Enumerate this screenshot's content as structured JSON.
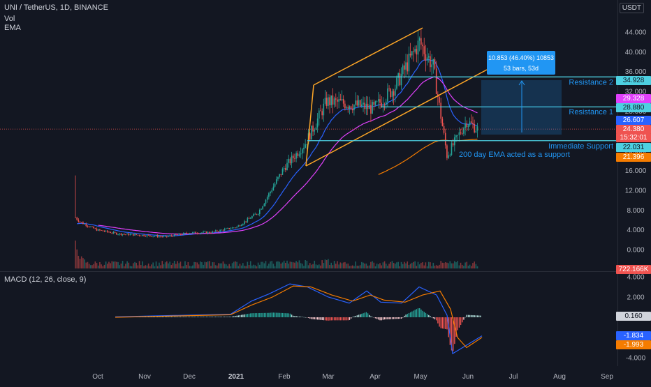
{
  "legend": {
    "symbol": "UNI / TetherUS, 1D, BINANCE",
    "vol": "Vol",
    "ema": "EMA",
    "macd": "MACD (12, 26, close, 9)"
  },
  "currency": "USDT",
  "colors": {
    "background": "#131722",
    "up": "#26a69a",
    "down": "#ef5350",
    "ema_fast": "#2962ff",
    "ema_mid": "#e040fb",
    "ema_200": "#f57c00",
    "channel": "#ffa726",
    "hline": "#4dd0e1",
    "measure": "#2196f3"
  },
  "price_axis": [
    "44.000",
    "40.000",
    "36.000",
    "32.000",
    "28.000",
    "24.000",
    "20.000",
    "16.000",
    "12.000",
    "8.000",
    "4.000",
    "0.000"
  ],
  "macd_axis": [
    "4.000",
    "2.000",
    "-2.000",
    "-4.000"
  ],
  "time_axis": [
    "Oct",
    "Nov",
    "Dec",
    "2021",
    "Feb",
    "Mar",
    "Apr",
    "May",
    "Jun",
    "Jul",
    "Aug",
    "Sep"
  ],
  "price_tags": {
    "resistance2": "34.928",
    "ema_mid": "29.328",
    "resistance1": "28.880",
    "ema_fast": "26.607",
    "last": "24.380",
    "countdown": "15:32:01",
    "support": "22.031",
    "ema_200": "21.396",
    "volume": "722.166K"
  },
  "macd_tags": {
    "hist": "0.160",
    "macd": "-1.834",
    "signal": "-1.993"
  },
  "annotations": {
    "resistance2": "Resistance 2",
    "resistance1": "Resistance 1",
    "support": "Immediate Support",
    "ema_note": "200 day EMA acted as a support",
    "measure_line1": "10.853 (46.40%) 10853",
    "measure_line2": "53 bars, 53d"
  },
  "chart_data": {
    "type": "candlestick",
    "symbol": "UNI/USDT",
    "interval": "1D",
    "exchange": "BINANCE",
    "ylim": [
      -1,
      46
    ],
    "x_categories": [
      "Oct",
      "Nov",
      "Dec",
      "2021",
      "Feb",
      "Mar",
      "Apr",
      "May",
      "Jun",
      "Jul",
      "Aug",
      "Sep"
    ],
    "close_path": [
      [
        "Sep 17",
        6.5
      ],
      [
        "Sep 20",
        5.6
      ],
      [
        "Oct 1",
        4.0
      ],
      [
        "Oct 15",
        3.2
      ],
      [
        "Nov 1",
        2.9
      ],
      [
        "Nov 15",
        2.6
      ],
      [
        "Dec 1",
        3.4
      ],
      [
        "Dec 15",
        3.5
      ],
      [
        "Jan 1",
        4.6
      ],
      [
        "Jan 15",
        7.5
      ],
      [
        "Feb 1",
        16.5
      ],
      [
        "Feb 15",
        21.5
      ],
      [
        "Mar 1",
        30.0
      ],
      [
        "Mar 15",
        29.5
      ],
      [
        "Apr 1",
        28.5
      ],
      [
        "Apr 15",
        33.0
      ],
      [
        "May 1",
        42.0
      ],
      [
        "May 10",
        37.0
      ],
      [
        "May 19",
        19.0
      ],
      [
        "Jun 1",
        26.0
      ],
      [
        "Jun 8",
        24.38
      ]
    ],
    "levels": {
      "resistance_2": 34.928,
      "resistance_1": 28.88,
      "immediate_support": 22.031
    },
    "ema_current": {
      "ema_fast": 26.607,
      "ema_mid": 29.328,
      "ema_200": 21.396
    },
    "measurement": {
      "change": 10.853,
      "change_pct": 46.4,
      "bars": 53
    },
    "macd": {
      "params": [
        12,
        26,
        9
      ],
      "ylim": [
        -4.8,
        4.8
      ],
      "current": {
        "histogram": 0.16,
        "macd": -1.834,
        "signal": -1.993
      }
    }
  }
}
